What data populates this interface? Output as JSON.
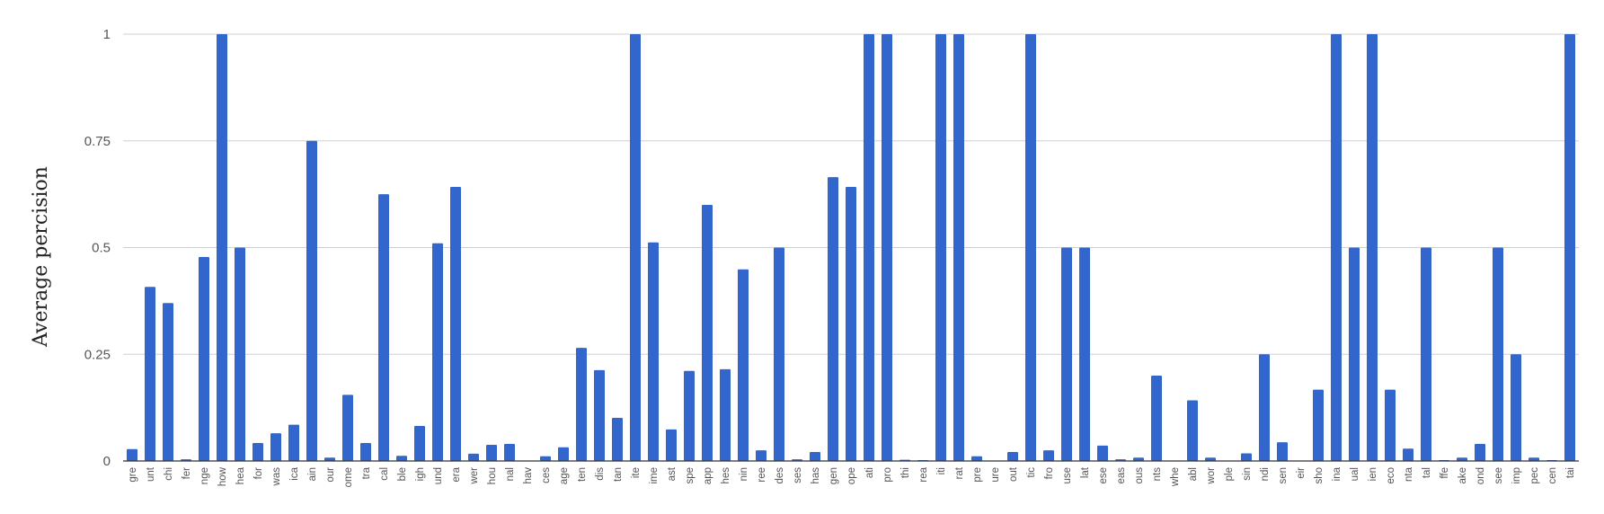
{
  "colors": {
    "bar": "#3366cc",
    "grid": "#d0d0d0",
    "axis": "#333333"
  },
  "chart_data": {
    "type": "bar",
    "title": "",
    "xlabel": "",
    "ylabel": "Average percision",
    "ylim": [
      0,
      1
    ],
    "yticks": [
      0,
      0.25,
      0.5,
      0.75,
      1
    ],
    "ytick_labels": [
      "0",
      "0.25",
      "0.5",
      "0.75",
      "1"
    ],
    "grid": "horizontal",
    "legend": "none",
    "categories": [
      "gre",
      "unt",
      "chi",
      "fer",
      "nge",
      "how",
      "hea",
      "for",
      "was",
      "ica",
      "ain",
      "our",
      "ome",
      "tra",
      "cal",
      "ble",
      "igh",
      "und",
      "era",
      "wer",
      "hou",
      "nal",
      "hav",
      "ces",
      "age",
      "ten",
      "dis",
      "tan",
      "ite",
      "ime",
      "ast",
      "spe",
      "app",
      "hes",
      "nin",
      "ree",
      "des",
      "ses",
      "has",
      "gen",
      "ope",
      "ati",
      "pro",
      "thi",
      "rea",
      "iti",
      "rat",
      "pre",
      "ure",
      "out",
      "tic",
      "fro",
      "use",
      "lat",
      "ese",
      "eas",
      "ous",
      "nts",
      "whe",
      "abl",
      "wor",
      "ple",
      "sin",
      "ndi",
      "sen",
      "eir",
      "sho",
      "ina",
      "ual",
      "ien",
      "eco",
      "nta",
      "tal",
      "ffe",
      "ake",
      "ond",
      "see",
      "imp",
      "pec",
      "cen",
      "tai"
    ],
    "values": [
      0.028,
      0.408,
      0.37,
      0.004,
      0.478,
      1,
      0.5,
      0.042,
      0.065,
      0.085,
      0.75,
      0.008,
      0.155,
      0.042,
      0.625,
      0.012,
      0.082,
      0.51,
      0.642,
      0.017,
      0.038,
      0.04,
      0,
      0.011,
      0.032,
      0.265,
      0.213,
      0.101,
      1,
      0.512,
      0.074,
      0.211,
      0.6,
      0.215,
      0.449,
      0.025,
      0.5,
      0.004,
      0.021,
      0.665,
      0.642,
      1,
      1,
      0.003,
      0.002,
      1,
      1,
      0.011,
      0,
      0.021,
      1,
      0.025,
      0.5,
      0.5,
      0.036,
      0.004,
      0.008,
      0.2,
      0,
      0.142,
      0.008,
      0,
      0.018,
      0.25,
      0.044,
      0,
      0.167,
      1,
      0.5,
      1,
      0.167,
      0.029,
      0.5,
      0.002,
      0.008,
      0.04,
      0.5,
      0.25,
      0.008,
      0.002,
      1
    ]
  }
}
